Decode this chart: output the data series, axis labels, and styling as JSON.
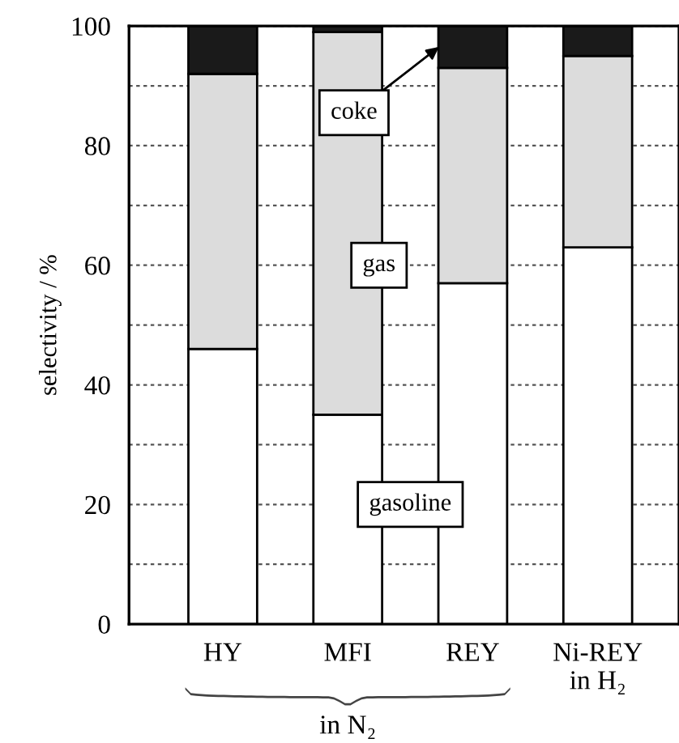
{
  "chart_data": {
    "type": "bar",
    "stacked": true,
    "ylabel": "selectivity / %",
    "categories": [
      "HY",
      "MFI",
      "REY",
      "Ni-REY\nin H₂"
    ],
    "series": [
      {
        "name": "gasoline",
        "color": "#ffffff",
        "values": [
          46,
          35,
          57,
          63
        ]
      },
      {
        "name": "gas",
        "color": "#dcdcdc",
        "values": [
          46,
          64,
          36,
          32
        ]
      },
      {
        "name": "coke",
        "color": "#1a1a1a",
        "values": [
          8,
          1,
          7,
          5
        ]
      }
    ],
    "ylim": [
      0,
      100
    ],
    "yticks": [
      0,
      {
        "value": 10,
        "label": null
      },
      20,
      {
        "value": 30,
        "label": null
      },
      40,
      {
        "value": 50,
        "label": null
      },
      60,
      {
        "value": 70,
        "label": null
      },
      80,
      {
        "value": 90,
        "label": null
      },
      100
    ],
    "grid": "y",
    "legend": false,
    "annotations": [
      "in N₂"
    ]
  }
}
